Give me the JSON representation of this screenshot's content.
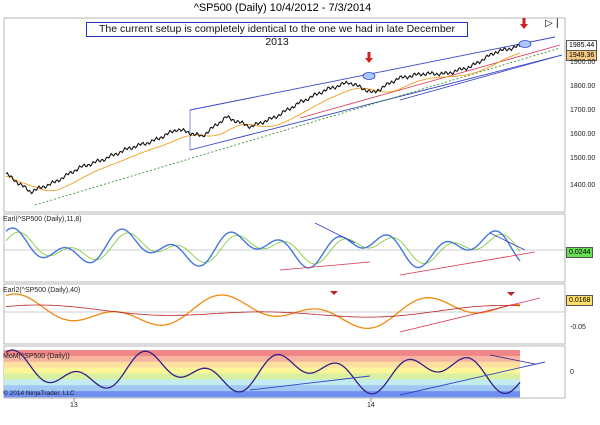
{
  "title": "^SP500 (Daily)  10/4/2012 - 7/3/2014",
  "annotation": "The current setup is completely identical to the one we had in late December 2013",
  "copyright": "© 2014 NinjaTrader, LLC",
  "colors": {
    "price": "#111111",
    "channel": "#3344cc",
    "ma_orange": "#f0a020",
    "trend_green": "#228822",
    "trend_red": "#dd3355",
    "arrow": "#cc2222",
    "osc_blue": "#4477dd",
    "osc_green": "#88cc44",
    "osc_orange": "#f08a10",
    "osc_red": "#bb2222",
    "mom_line": "#332288"
  },
  "chart_data": [
    {
      "type": "line",
      "panel": "price",
      "y_ticks": [
        "1900.00",
        "1800.00",
        "1700.00",
        "1600.00",
        "1500.00",
        "1400.00"
      ],
      "last_value_labels": [
        "1985.44",
        "1949.36"
      ],
      "x_tick_labels": [
        "13",
        "14"
      ],
      "x": [
        "2012-10",
        "2012-11",
        "2012-12",
        "2013-01",
        "2013-02",
        "2013-03",
        "2013-04",
        "2013-05",
        "2013-06",
        "2013-07",
        "2013-08",
        "2013-09",
        "2013-10",
        "2013-11",
        "2013-12",
        "2014-01",
        "2014-02",
        "2014-03",
        "2014-04",
        "2014-05",
        "2014-06",
        "2014-07"
      ],
      "series": [
        {
          "values": [
            1455,
            1380,
            1420,
            1480,
            1515,
            1560,
            1590,
            1640,
            1610,
            1690,
            1650,
            1690,
            1750,
            1800,
            1835,
            1790,
            1850,
            1870,
            1870,
            1900,
            1960,
            1985
          ]
        }
      ]
    },
    {
      "type": "line",
      "panel": "oscillator",
      "label": "Earl(^SP500 (Daily),11,8)",
      "last_value": "0.0244"
    },
    {
      "type": "line",
      "panel": "oscillator",
      "label": "Earl2(^SP500 (Daily),40)",
      "last_value": "0.0168",
      "y_ticks": [
        "-0.05"
      ]
    },
    {
      "type": "line",
      "panel": "momentum",
      "label": "MoM(^SP500 (Daily))",
      "y_ticks": [
        "0"
      ]
    }
  ]
}
